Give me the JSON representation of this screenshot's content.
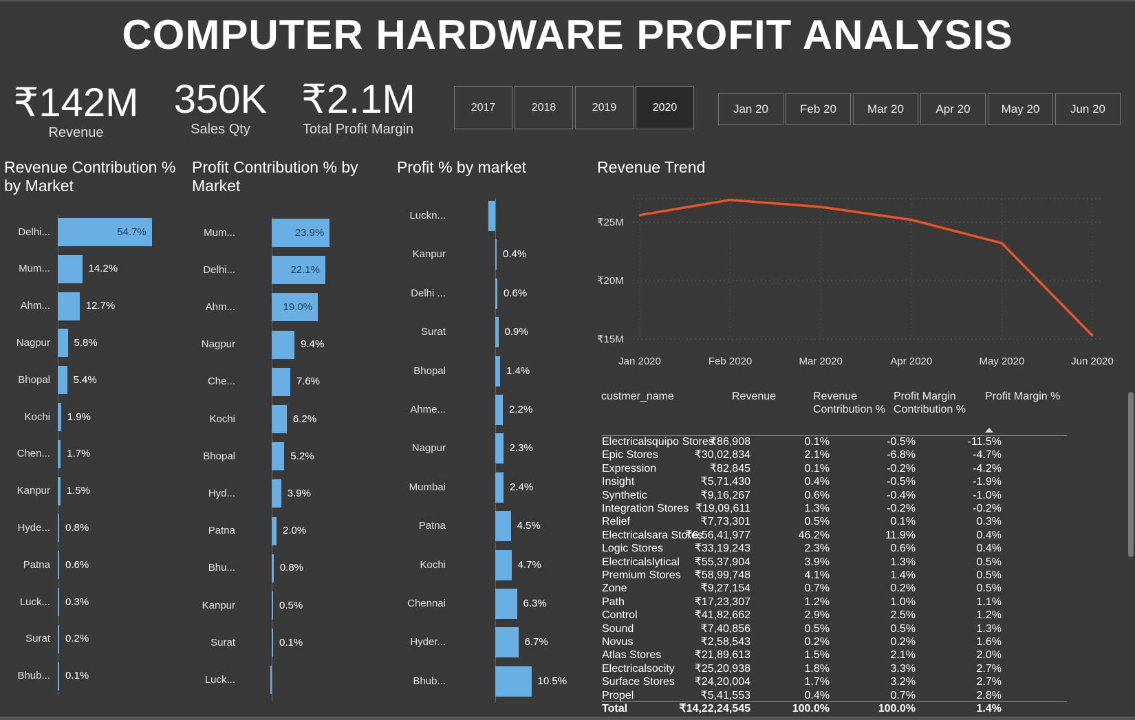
{
  "title": "COMPUTER HARDWARE PROFIT ANALYSIS",
  "kpis": {
    "revenue": {
      "value": "₹142M",
      "label": "Revenue"
    },
    "sales_qty": {
      "value": "350K",
      "label": "Sales Qty"
    },
    "profit_margin": {
      "value": "₹2.1M",
      "label": "Total Profit Margin"
    }
  },
  "year_filters": [
    "2017",
    "2018",
    "2019",
    "2020"
  ],
  "selected_year": "2020",
  "month_filters": [
    "Jan 20",
    "Feb 20",
    "Mar 20",
    "Apr 20",
    "May 20",
    "Jun 20"
  ],
  "colors": {
    "bar": "#69afe3",
    "line": "#e8552b",
    "background": "#393939"
  },
  "chart_data": [
    {
      "type": "bar",
      "orientation": "horizontal",
      "title": "Revenue Contribution % by Market",
      "categories": [
        "Delhi...",
        "Mum...",
        "Ahm...",
        "Nagpur",
        "Bhopal",
        "Kochi",
        "Chen...",
        "Kanpur",
        "Hyde...",
        "Patna",
        "Luck...",
        "Surat",
        "Bhub..."
      ],
      "values": [
        54.7,
        14.2,
        12.7,
        5.8,
        5.4,
        1.9,
        1.7,
        1.5,
        0.8,
        0.6,
        0.3,
        0.2,
        0.1
      ],
      "labels": [
        "54.7%",
        "14.2%",
        "12.7%",
        "5.8%",
        "5.4%",
        "1.9%",
        "1.7%",
        "1.5%",
        "0.8%",
        "0.6%",
        "0.3%",
        "0.2%",
        "0.1%"
      ]
    },
    {
      "type": "bar",
      "orientation": "horizontal",
      "title": "Profit Contribution % by Market",
      "categories": [
        "Mum...",
        "Delhi...",
        "Ahm...",
        "Nagpur",
        "Che...",
        "Kochi",
        "Bhopal",
        "Hyd...",
        "Patna",
        "Bhu...",
        "Kanpur",
        "Surat",
        "Luck..."
      ],
      "values": [
        23.9,
        22.1,
        19.0,
        9.4,
        7.6,
        6.2,
        5.2,
        3.9,
        2.0,
        0.8,
        0.5,
        0.1,
        -0.1
      ],
      "labels": [
        "23.9%",
        "22.1%",
        "19.0%",
        "9.4%",
        "7.6%",
        "6.2%",
        "5.2%",
        "3.9%",
        "2.0%",
        "0.8%",
        "0.5%",
        "0.1%",
        ""
      ]
    },
    {
      "type": "bar",
      "orientation": "horizontal",
      "title": "Profit % by market",
      "categories": [
        "Luckn...",
        "Kanpur",
        "Delhi ...",
        "Surat",
        "Bhopal",
        "Ahme...",
        "Nagpur",
        "Mumbai",
        "Patna",
        "Kochi",
        "Chennai",
        "Hyder...",
        "Bhub..."
      ],
      "values": [
        -2,
        0.4,
        0.6,
        0.9,
        1.4,
        2.2,
        2.3,
        2.4,
        4.5,
        4.7,
        6.3,
        6.7,
        10.5
      ],
      "labels": [
        "-2",
        "0.4%",
        "0.6%",
        "0.9%",
        "1.4%",
        "2.2%",
        "2.3%",
        "2.4%",
        "4.5%",
        "4.7%",
        "6.3%",
        "6.7%",
        "10.5%"
      ]
    },
    {
      "type": "line",
      "title": "Revenue Trend",
      "x": [
        "Jan 2020",
        "Feb 2020",
        "Mar 2020",
        "Apr 2020",
        "May 2020",
        "Jun 2020"
      ],
      "y": [
        25.6,
        26.9,
        26.3,
        25.2,
        23.2,
        15.3
      ],
      "y_unit": "₹M",
      "yticks": [
        "₹25M",
        "₹20M",
        "₹15M"
      ],
      "ytick_values": [
        25,
        20,
        15
      ],
      "ylim": [
        15,
        27
      ],
      "grid": true
    },
    {
      "type": "table",
      "columns": [
        "custmer_name",
        "Revenue",
        "Revenue Contribution %",
        "Profit Margin Contribution %",
        "Profit Margin %"
      ],
      "sorted_by": "Profit Margin %",
      "rows": [
        [
          "Electricalsquipo Stores",
          "₹86,908",
          "0.1%",
          "-0.5%",
          "-11.5%"
        ],
        [
          "Epic Stores",
          "₹30,02,834",
          "2.1%",
          "-6.8%",
          "-4.7%"
        ],
        [
          "Expression",
          "₹82,845",
          "0.1%",
          "-0.2%",
          "-4.2%"
        ],
        [
          "Insight",
          "₹5,71,430",
          "0.4%",
          "-0.5%",
          "-1.9%"
        ],
        [
          "Synthetic",
          "₹9,16,267",
          "0.6%",
          "-0.4%",
          "-1.0%"
        ],
        [
          "Integration Stores",
          "₹19,09,611",
          "1.3%",
          "-0.2%",
          "-0.2%"
        ],
        [
          "Relief",
          "₹7,73,301",
          "0.5%",
          "0.1%",
          "0.3%"
        ],
        [
          "Electricalsara Stores",
          "₹6,56,41,977",
          "46.2%",
          "11.9%",
          "0.4%"
        ],
        [
          "Logic Stores",
          "₹33,19,243",
          "2.3%",
          "0.6%",
          "0.4%"
        ],
        [
          "Electricalslytical",
          "₹55,37,904",
          "3.9%",
          "1.3%",
          "0.5%"
        ],
        [
          "Premium Stores",
          "₹58,99,748",
          "4.1%",
          "1.4%",
          "0.5%"
        ],
        [
          "Zone",
          "₹9,27,154",
          "0.7%",
          "0.2%",
          "0.5%"
        ],
        [
          "Path",
          "₹17,23,307",
          "1.2%",
          "1.0%",
          "1.1%"
        ],
        [
          "Control",
          "₹41,82,662",
          "2.9%",
          "2.5%",
          "1.2%"
        ],
        [
          "Sound",
          "₹7,40,856",
          "0.5%",
          "0.5%",
          "1.3%"
        ],
        [
          "Novus",
          "₹2,58,543",
          "0.2%",
          "0.2%",
          "1.6%"
        ],
        [
          "Atlas Stores",
          "₹21,89,613",
          "1.5%",
          "2.1%",
          "2.0%"
        ],
        [
          "Electricalsocity",
          "₹25,20,938",
          "1.8%",
          "3.3%",
          "2.7%"
        ],
        [
          "Surface Stores",
          "₹24,20,004",
          "1.7%",
          "3.2%",
          "2.7%"
        ],
        [
          "Propel",
          "₹5,41,553",
          "0.4%",
          "0.7%",
          "2.8%"
        ]
      ],
      "total": [
        "Total",
        "₹14,22,24,545",
        "100.0%",
        "100.0%",
        "1.4%"
      ]
    }
  ]
}
